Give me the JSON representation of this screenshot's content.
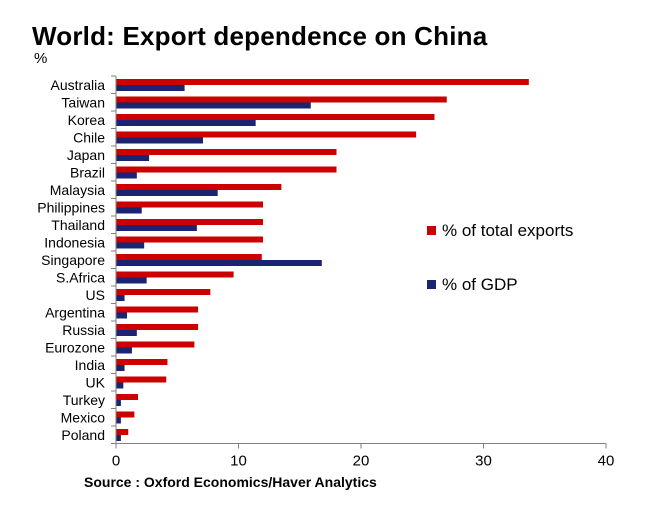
{
  "header": {
    "title": "World: Export dependence on China",
    "unit": "%"
  },
  "footer": {
    "source": "Source : Oxford Economics/Haver Analytics"
  },
  "colors": {
    "exports": "#cc0000",
    "gdp": "#1a2470",
    "axis": "#808080"
  },
  "chart_data": {
    "type": "bar",
    "orientation": "horizontal",
    "categories": [
      "Australia",
      "Taiwan",
      "Korea",
      "Chile",
      "Japan",
      "Brazil",
      "Malaysia",
      "Philippines",
      "Thailand",
      "Indonesia",
      "Singapore",
      "S.Africa",
      "US",
      "Argentina",
      "Russia",
      "Eurozone",
      "India",
      "UK",
      "Turkey",
      "Mexico",
      "Poland"
    ],
    "series": [
      {
        "name": "% of total exports",
        "color": "#cc0000",
        "values": [
          33.7,
          27.0,
          26.0,
          24.5,
          18.0,
          18.0,
          13.5,
          12.0,
          12.0,
          12.0,
          11.9,
          9.6,
          7.7,
          6.7,
          6.7,
          6.4,
          4.2,
          4.1,
          1.8,
          1.5,
          1.0
        ]
      },
      {
        "name": "% of GDP",
        "color": "#1a2470",
        "values": [
          5.6,
          15.9,
          11.4,
          7.1,
          2.7,
          1.7,
          8.3,
          2.1,
          6.6,
          2.3,
          16.8,
          2.5,
          0.7,
          0.9,
          1.7,
          1.3,
          0.7,
          0.6,
          0.4,
          0.4,
          0.4
        ]
      }
    ],
    "xlim": [
      0,
      40
    ],
    "xticks": [
      0,
      10,
      20,
      30,
      40
    ],
    "legend": "right"
  }
}
